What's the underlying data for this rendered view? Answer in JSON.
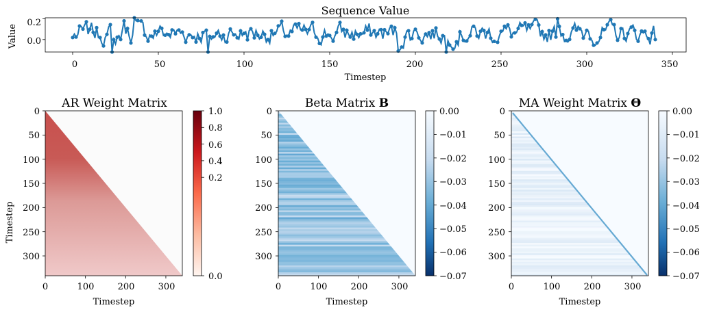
{
  "chart_data": [
    {
      "type": "line",
      "title": "Sequence Value",
      "xlabel": "Timestep",
      "ylabel": "Value",
      "xlim": [
        -16,
        358
      ],
      "ylim": [
        -0.12,
        0.21
      ],
      "xticks": [
        "0",
        "50",
        "100",
        "150",
        "200",
        "250",
        "300",
        "350"
      ],
      "yticks": [
        "0.0",
        "0.2"
      ],
      "color": "#1f77b4",
      "n_points": 341,
      "marker": "circle",
      "sample_points": [
        {
          "x": 0,
          "y": 0.02
        },
        {
          "x": 10,
          "y": 0.1
        },
        {
          "x": 20,
          "y": 0.05
        },
        {
          "x": 23,
          "y": -0.12
        },
        {
          "x": 30,
          "y": 0.18
        },
        {
          "x": 36,
          "y": 0.21
        },
        {
          "x": 50,
          "y": 0.08
        },
        {
          "x": 79,
          "y": -0.12
        },
        {
          "x": 100,
          "y": 0.06
        },
        {
          "x": 150,
          "y": 0.04
        },
        {
          "x": 190,
          "y": -0.11
        },
        {
          "x": 200,
          "y": 0.1
        },
        {
          "x": 218,
          "y": -0.12
        },
        {
          "x": 250,
          "y": 0.08
        },
        {
          "x": 283,
          "y": 0.2
        },
        {
          "x": 300,
          "y": 0.09
        },
        {
          "x": 340,
          "y": 0.0
        }
      ]
    },
    {
      "type": "heatmap",
      "title": "AR Weight Matrix",
      "xlabel": "Timestep",
      "ylabel": "Timestep",
      "structure": "lower-triangular",
      "size": [
        341,
        341
      ],
      "xticks": [
        "0",
        "100",
        "200",
        "300"
      ],
      "yticks": [
        "0",
        "50",
        "100",
        "150",
        "200",
        "250",
        "300"
      ],
      "colorbar": {
        "range": [
          0.0,
          1.0
        ],
        "ticks": [
          "1.0",
          "0.8",
          "0.6",
          "0.4",
          "0.2",
          "0.0"
        ],
        "colormap": "Reds"
      },
      "row_values": [
        {
          "row": 0,
          "value": 0.6
        },
        {
          "row": 100,
          "value": 0.58
        },
        {
          "row": 340,
          "value": 0.32
        }
      ]
    },
    {
      "type": "heatmap",
      "title": "Beta Matrix",
      "title_symbol": "B",
      "xlabel": "Timestep",
      "structure": "lower-triangular",
      "size": [
        341,
        341
      ],
      "xticks": [
        "0",
        "100",
        "200",
        "300"
      ],
      "yticks": [
        "0",
        "50",
        "100",
        "150",
        "200",
        "250",
        "300"
      ],
      "colorbar": {
        "range": [
          -0.07,
          0.0
        ],
        "ticks": [
          "0.00",
          "−0.01",
          "−0.02",
          "−0.03",
          "−0.04",
          "−0.05",
          "−0.06",
          "−0.07"
        ],
        "colormap": "Blues_r"
      },
      "value_range": [
        -0.04,
        -0.02
      ]
    },
    {
      "type": "heatmap",
      "title": "MA Weight Matrix",
      "title_symbol": "Θ",
      "xlabel": "Timestep",
      "structure": "lower-triangular",
      "size": [
        341,
        341
      ],
      "xticks": [
        "0",
        "100",
        "200",
        "300"
      ],
      "yticks": [
        "0",
        "50",
        "100",
        "150",
        "200",
        "250",
        "300"
      ],
      "colorbar": {
        "range": [
          -0.07,
          0.0
        ],
        "ticks": [
          "0.00",
          "−0.01",
          "−0.02",
          "−0.03",
          "−0.04",
          "−0.05",
          "−0.06",
          "−0.07"
        ],
        "colormap": "Blues_r"
      },
      "diagonal_value": -0.04,
      "off_diagonal_value_range": [
        -0.012,
        0.0
      ]
    }
  ]
}
